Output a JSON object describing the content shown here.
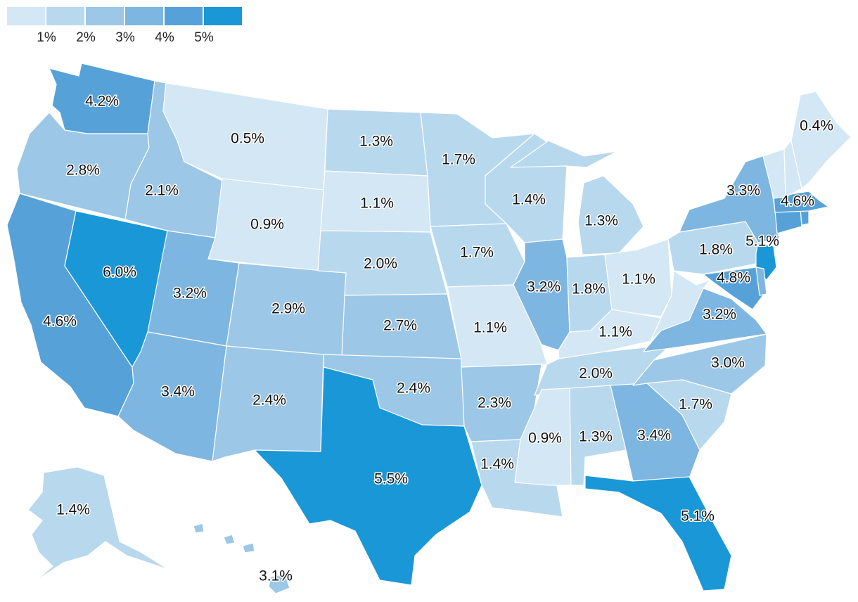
{
  "legend": {
    "tick_labels": [
      "1%",
      "2%",
      "3%",
      "4%",
      "5%"
    ],
    "bin_colors": [
      "#d3e7f4",
      "#b8d8ee",
      "#9cc7e6",
      "#7db6e0",
      "#56a2d8",
      "#1a97d6"
    ]
  },
  "states": [
    {
      "id": "WA",
      "label": "4.2%",
      "bin": 4
    },
    {
      "id": "OR",
      "label": "2.8%",
      "bin": 2
    },
    {
      "id": "CA",
      "label": "4.6%",
      "bin": 4
    },
    {
      "id": "NV",
      "label": "6.0%",
      "bin": 5
    },
    {
      "id": "ID",
      "label": "2.1%",
      "bin": 2
    },
    {
      "id": "MT",
      "label": "0.5%",
      "bin": 0
    },
    {
      "id": "WY",
      "label": "0.9%",
      "bin": 0
    },
    {
      "id": "UT",
      "label": "3.2%",
      "bin": 3
    },
    {
      "id": "AZ",
      "label": "3.4%",
      "bin": 3
    },
    {
      "id": "CO",
      "label": "2.9%",
      "bin": 2
    },
    {
      "id": "NM",
      "label": "2.4%",
      "bin": 2
    },
    {
      "id": "ND",
      "label": "1.3%",
      "bin": 1
    },
    {
      "id": "SD",
      "label": "1.1%",
      "bin": 0
    },
    {
      "id": "NE",
      "label": "2.0%",
      "bin": 1
    },
    {
      "id": "KS",
      "label": "2.7%",
      "bin": 2
    },
    {
      "id": "OK",
      "label": "2.4%",
      "bin": 2
    },
    {
      "id": "TX",
      "label": "5.5%",
      "bin": 5
    },
    {
      "id": "MN",
      "label": "1.7%",
      "bin": 1
    },
    {
      "id": "IA",
      "label": "1.7%",
      "bin": 1
    },
    {
      "id": "MO",
      "label": "1.1%",
      "bin": 0
    },
    {
      "id": "AR",
      "label": "2.3%",
      "bin": 2
    },
    {
      "id": "LA",
      "label": "1.4%",
      "bin": 1
    },
    {
      "id": "WI",
      "label": "1.4%",
      "bin": 1
    },
    {
      "id": "IL",
      "label": "3.2%",
      "bin": 3
    },
    {
      "id": "MI",
      "label": "1.3%",
      "bin": 1
    },
    {
      "id": "IN",
      "label": "1.8%",
      "bin": 1
    },
    {
      "id": "OH",
      "label": "1.1%",
      "bin": 0
    },
    {
      "id": "KY",
      "label": "1.1%",
      "bin": 0
    },
    {
      "id": "TN",
      "label": "2.0%",
      "bin": 1
    },
    {
      "id": "MS",
      "label": "0.9%",
      "bin": 0
    },
    {
      "id": "AL",
      "label": "1.3%",
      "bin": 1
    },
    {
      "id": "GA",
      "label": "3.4%",
      "bin": 3
    },
    {
      "id": "FL",
      "label": "5.1%",
      "bin": 5
    },
    {
      "id": "SC",
      "label": "1.7%",
      "bin": 1
    },
    {
      "id": "NC",
      "label": "3.0%",
      "bin": 2
    },
    {
      "id": "VA",
      "label": "3.2%",
      "bin": 3
    },
    {
      "id": "WV",
      "label": "",
      "bin": 0
    },
    {
      "id": "PA",
      "label": "1.8%",
      "bin": 1
    },
    {
      "id": "NY",
      "label": "3.3%",
      "bin": 3
    },
    {
      "id": "NJ",
      "label": "5.1%",
      "bin": 5
    },
    {
      "id": "MD",
      "label": "4.8%",
      "bin": 4
    },
    {
      "id": "DE",
      "label": "",
      "bin": 3
    },
    {
      "id": "CT",
      "label": "",
      "bin": 4
    },
    {
      "id": "RI",
      "label": "",
      "bin": 4
    },
    {
      "id": "MA",
      "label": "4.6%",
      "bin": 4
    },
    {
      "id": "VT",
      "label": "",
      "bin": 0
    },
    {
      "id": "NH",
      "label": "",
      "bin": 0
    },
    {
      "id": "ME",
      "label": "0.4%",
      "bin": 0
    },
    {
      "id": "AK",
      "label": "1.4%",
      "bin": 1
    },
    {
      "id": "HI",
      "label": "3.1%",
      "bin": 2
    }
  ]
}
